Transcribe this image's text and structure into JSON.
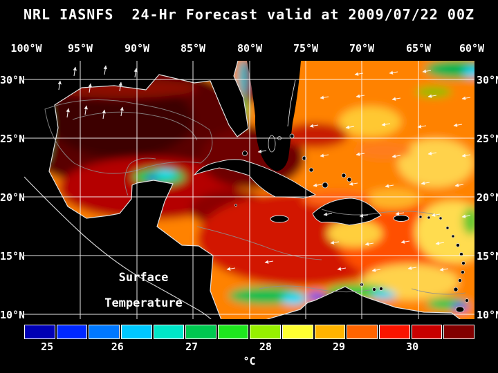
{
  "title": "NRL IASNFS  24-Hr Forecast valid at 2009/07/22 00Z",
  "axes": {
    "lon": [
      "100°W",
      "95°W",
      "90°W",
      "85°W",
      "80°W",
      "75°W",
      "70°W",
      "65°W",
      "60°W"
    ],
    "lat": [
      "30°N",
      "25°N",
      "20°N",
      "15°N",
      "10°N"
    ]
  },
  "overlay": {
    "line1": "Surface",
    "line2": "Temperature"
  },
  "colorbar": {
    "unit": "°C",
    "ticks": [
      "25",
      "26",
      "27",
      "28",
      "29",
      "30"
    ],
    "colors": [
      "#0000b4",
      "#0028ff",
      "#0078ff",
      "#00c8ff",
      "#00e6c8",
      "#00c850",
      "#1ee61e",
      "#96f000",
      "#ffff32",
      "#ffb400",
      "#ff6400",
      "#fa1400",
      "#c80000",
      "#820000"
    ]
  }
}
